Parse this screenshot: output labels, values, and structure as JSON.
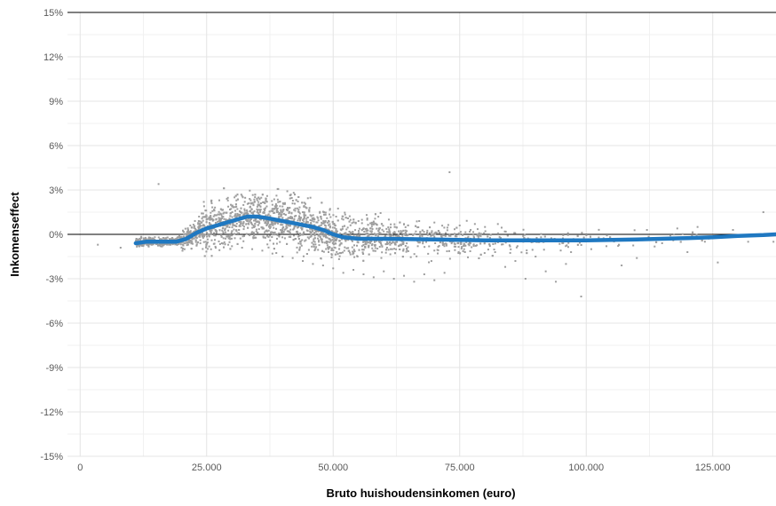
{
  "chart_data": {
    "type": "scatter",
    "xlabel": "Bruto huishoudensinkomen (euro)",
    "ylabel": "Inkomenseffect",
    "xlim": [
      -2500,
      137500
    ],
    "ylim": [
      -15,
      15
    ],
    "x_ticks": [
      {
        "value": 0,
        "label": "0"
      },
      {
        "value": 25000,
        "label": "25.000"
      },
      {
        "value": 50000,
        "label": "50.000"
      },
      {
        "value": 75000,
        "label": "75.000"
      },
      {
        "value": 100000,
        "label": "100.000"
      },
      {
        "value": 125000,
        "label": "125.000"
      }
    ],
    "y_ticks": [
      {
        "value": 15,
        "label": "15%"
      },
      {
        "value": 12,
        "label": "12%"
      },
      {
        "value": 9,
        "label": "9%"
      },
      {
        "value": 6,
        "label": "6%"
      },
      {
        "value": 3,
        "label": "3%"
      },
      {
        "value": 0,
        "label": "0%"
      },
      {
        "value": -3,
        "label": "-3%"
      },
      {
        "value": -6,
        "label": "-6%"
      },
      {
        "value": -9,
        "label": "-9%"
      },
      {
        "value": -12,
        "label": "-12%"
      },
      {
        "value": -15,
        "label": "-15%"
      }
    ],
    "grid": true,
    "colors": {
      "points": "#9e9e9e",
      "trend": "#1f78c1",
      "zero_line": "#000000",
      "grid": "#e4e4e4"
    },
    "series": [
      {
        "kind": "scatter",
        "points": [
          [
            3500,
            -0.7
          ],
          [
            8000,
            -0.9
          ],
          [
            11500,
            -0.5
          ],
          [
            12500,
            -0.7
          ],
          [
            14000,
            -0.6
          ],
          [
            15500,
            3.4
          ],
          [
            17000,
            -0.5
          ],
          [
            19000,
            -0.4
          ],
          [
            21000,
            -0.2
          ],
          [
            22500,
            0.5
          ],
          [
            23500,
            1.2
          ],
          [
            24500,
            1.9
          ],
          [
            26000,
            2.1
          ],
          [
            27500,
            2.3
          ],
          [
            29000,
            2.4
          ],
          [
            30500,
            2.5
          ],
          [
            32000,
            2.6
          ],
          [
            33500,
            2.4
          ],
          [
            35000,
            2.3
          ],
          [
            36500,
            2.1
          ],
          [
            38000,
            2.0
          ],
          [
            39500,
            1.9
          ],
          [
            41000,
            1.8
          ],
          [
            42500,
            1.6
          ],
          [
            44000,
            1.5
          ],
          [
            45500,
            1.3
          ],
          [
            47000,
            1.1
          ],
          [
            48500,
            0.9
          ],
          [
            50000,
            0.7
          ],
          [
            26000,
            -0.4
          ],
          [
            28000,
            -0.6
          ],
          [
            30000,
            -0.8
          ],
          [
            32000,
            -0.9
          ],
          [
            34000,
            -1.0
          ],
          [
            36000,
            -1.1
          ],
          [
            38000,
            -1.3
          ],
          [
            40000,
            -1.5
          ],
          [
            42000,
            -1.6
          ],
          [
            44000,
            -1.8
          ],
          [
            46000,
            -2.0
          ],
          [
            48000,
            -2.1
          ],
          [
            50000,
            -2.3
          ],
          [
            52000,
            -2.6
          ],
          [
            54000,
            -2.4
          ],
          [
            56000,
            -2.7
          ],
          [
            58000,
            -2.9
          ],
          [
            60000,
            -2.5
          ],
          [
            62000,
            -3.0
          ],
          [
            64000,
            -2.8
          ],
          [
            66000,
            -3.2
          ],
          [
            68000,
            -2.7
          ],
          [
            70000,
            -3.1
          ],
          [
            72000,
            -2.6
          ],
          [
            52000,
            1.0
          ],
          [
            55000,
            0.9
          ],
          [
            58000,
            0.8
          ],
          [
            61000,
            1.0
          ],
          [
            64000,
            0.7
          ],
          [
            67000,
            0.9
          ],
          [
            70000,
            0.8
          ],
          [
            73000,
            4.2
          ],
          [
            75000,
            0.6
          ],
          [
            78000,
            0.7
          ],
          [
            80000,
            0.5
          ],
          [
            82000,
            -1.2
          ],
          [
            84000,
            -2.2
          ],
          [
            86000,
            -1.8
          ],
          [
            88000,
            -3.0
          ],
          [
            90000,
            -1.5
          ],
          [
            92000,
            -2.5
          ],
          [
            94000,
            -3.2
          ],
          [
            96000,
            -2.0
          ],
          [
            97000,
            -1.2
          ],
          [
            99000,
            -4.2
          ],
          [
            101000,
            -1.0
          ],
          [
            104000,
            -0.8
          ],
          [
            107000,
            -2.1
          ],
          [
            110000,
            -1.6
          ],
          [
            112000,
            0.3
          ],
          [
            115000,
            -0.6
          ],
          [
            118000,
            0.4
          ],
          [
            120000,
            -1.2
          ],
          [
            122000,
            0.5
          ],
          [
            126000,
            -1.9
          ],
          [
            129000,
            0.3
          ],
          [
            132000,
            -0.5
          ],
          [
            135000,
            1.5
          ],
          [
            137000,
            -0.5
          ],
          [
            37000,
            0.2
          ],
          [
            40000,
            0.4
          ],
          [
            43000,
            0.1
          ],
          [
            45000,
            -0.2
          ],
          [
            31000,
            1.0
          ],
          [
            33000,
            1.5
          ],
          [
            29000,
            0.5
          ],
          [
            27000,
            1.3
          ]
        ]
      },
      {
        "kind": "line",
        "points": [
          [
            11000,
            -0.6
          ],
          [
            13000,
            -0.5
          ],
          [
            16000,
            -0.5
          ],
          [
            19000,
            -0.5
          ],
          [
            21000,
            -0.3
          ],
          [
            23000,
            0.1
          ],
          [
            25000,
            0.4
          ],
          [
            28000,
            0.7
          ],
          [
            31000,
            1.0
          ],
          [
            33000,
            1.2
          ],
          [
            35000,
            1.2
          ],
          [
            37000,
            1.1
          ],
          [
            40000,
            0.9
          ],
          [
            43000,
            0.7
          ],
          [
            46000,
            0.5
          ],
          [
            48000,
            0.3
          ],
          [
            50000,
            0.0
          ],
          [
            52000,
            -0.2
          ],
          [
            55000,
            -0.3
          ],
          [
            60000,
            -0.3
          ],
          [
            70000,
            -0.35
          ],
          [
            80000,
            -0.4
          ],
          [
            90000,
            -0.4
          ],
          [
            100000,
            -0.4
          ],
          [
            110000,
            -0.35
          ],
          [
            120000,
            -0.25
          ],
          [
            125000,
            -0.2
          ],
          [
            130000,
            -0.1
          ],
          [
            135000,
            -0.05
          ],
          [
            137500,
            0.0
          ]
        ]
      }
    ]
  }
}
